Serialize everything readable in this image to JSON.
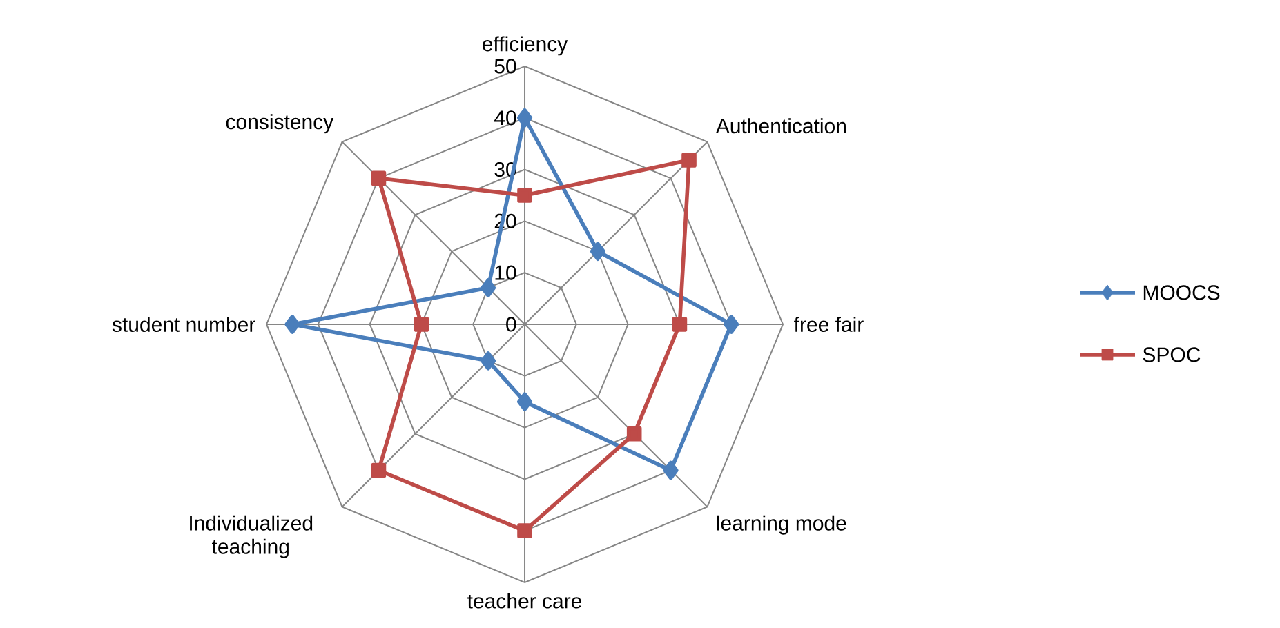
{
  "chart_data": {
    "type": "radar",
    "categories": [
      "efficiency",
      "Authentication",
      "free fair",
      "learning mode",
      "teacher care",
      "Individualized teaching",
      "student number",
      "consistency"
    ],
    "series": [
      {
        "name": "MOOCS",
        "color": "#4a7ebb",
        "marker": "diamond",
        "values": [
          40,
          20,
          40,
          40,
          15,
          10,
          45,
          10
        ]
      },
      {
        "name": "SPOC",
        "color": "#be4b48",
        "marker": "square",
        "values": [
          25,
          45,
          30,
          30,
          40,
          40,
          20,
          40
        ]
      }
    ],
    "ylim": [
      0,
      50
    ],
    "yticks": [
      0,
      10,
      20,
      30,
      40,
      50
    ],
    "grid": true,
    "legend": "right"
  }
}
